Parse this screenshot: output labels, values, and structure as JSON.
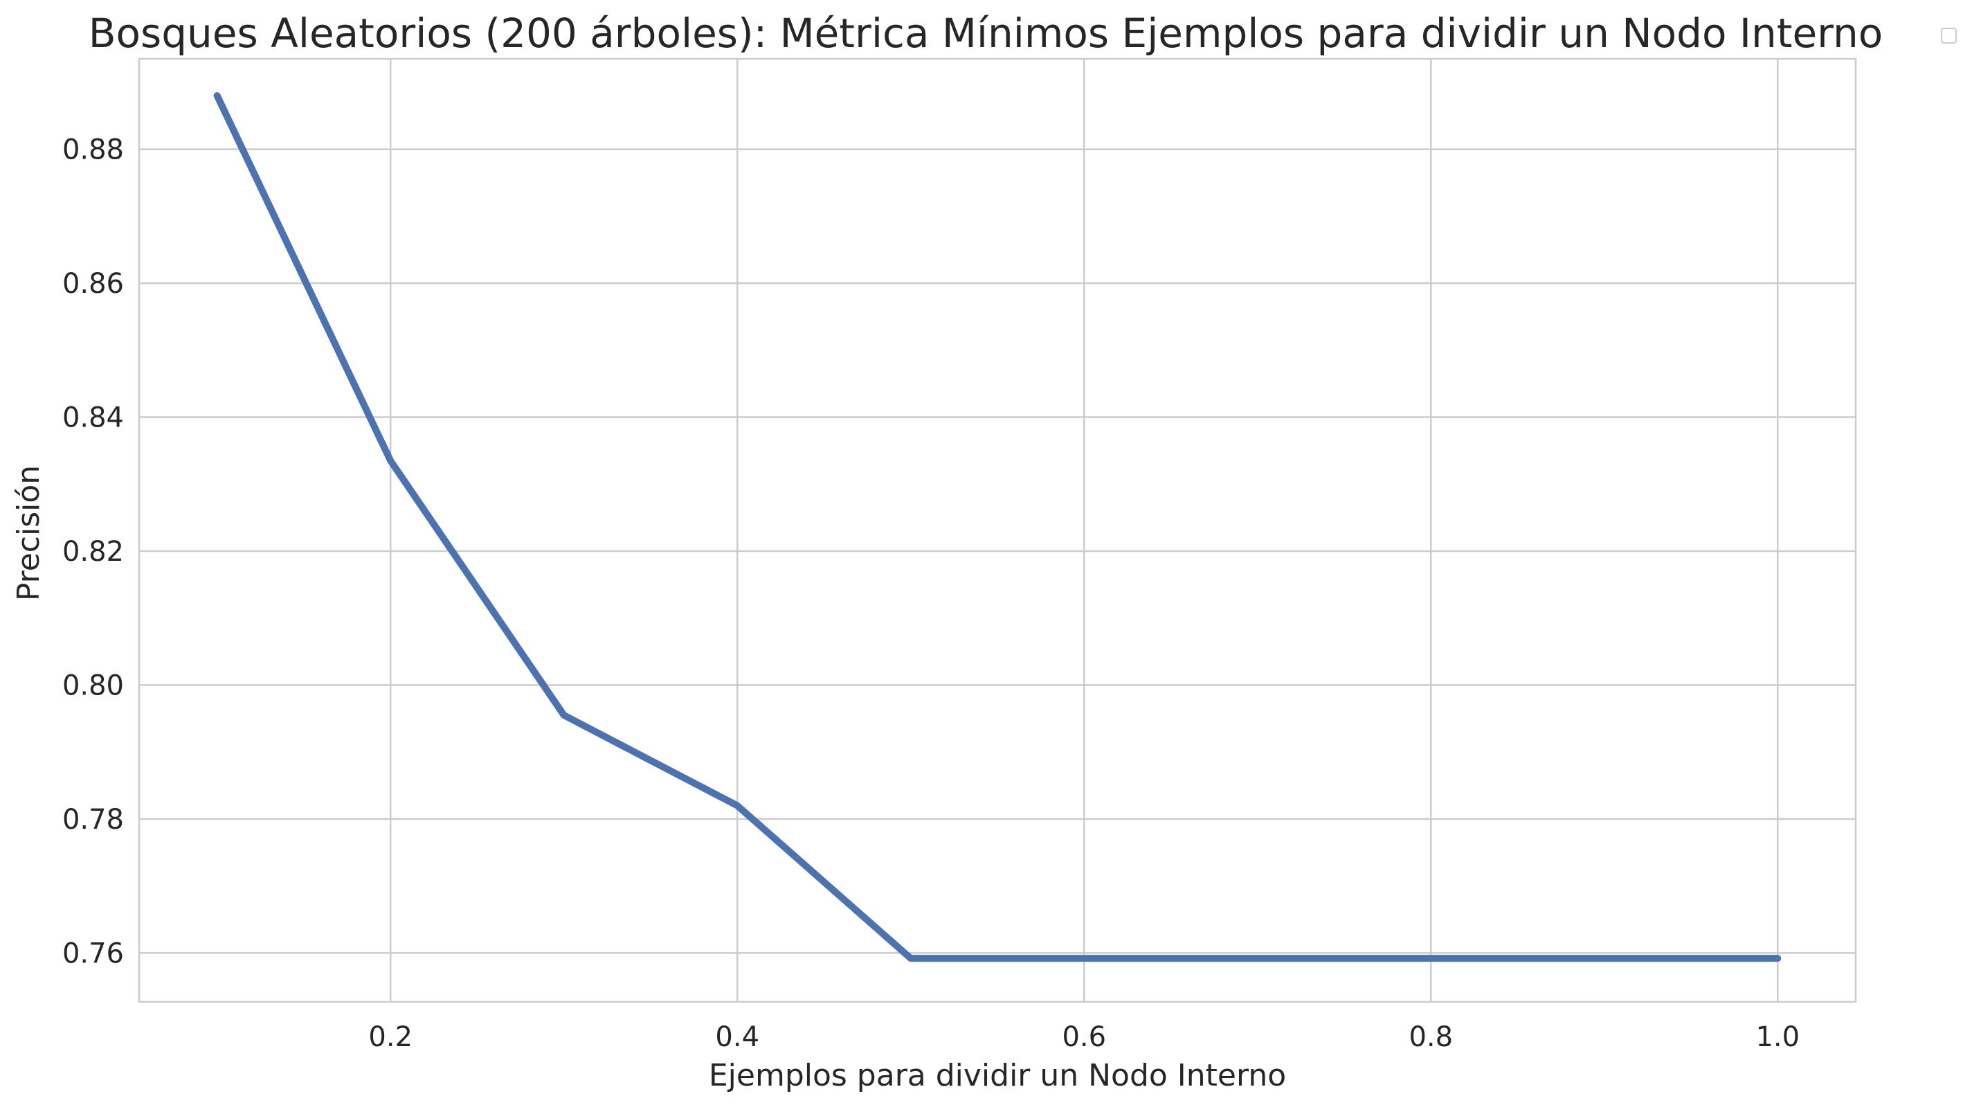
{
  "chart_data": {
    "type": "line",
    "title": "Bosques Aleatorios (200 árboles): Métrica Mínimos Ejemplos para dividir un Nodo Interno",
    "xlabel": "Ejemplos para dividir un Nodo Interno",
    "ylabel": "Precisión",
    "x": [
      0.1,
      0.2,
      0.3,
      0.4,
      0.5,
      0.6,
      0.7,
      0.8,
      0.9,
      1.0
    ],
    "series": [
      {
        "values": [
          0.888,
          0.8335,
          0.7955,
          0.782,
          0.7592,
          0.7592,
          0.7592,
          0.7592,
          0.7592,
          0.7592
        ],
        "color": "#4c72b0"
      }
    ],
    "xlim": [
      0.055,
      1.045
    ],
    "ylim": [
      0.7527,
      0.8935
    ],
    "xticks": [
      0.2,
      0.4,
      0.6,
      0.8,
      1.0
    ],
    "xtick_labels": [
      "0.2",
      "0.4",
      "0.6",
      "0.8",
      "1.0"
    ],
    "yticks": [
      0.76,
      0.78,
      0.8,
      0.82,
      0.84,
      0.86,
      0.88
    ],
    "ytick_labels": [
      "0.76",
      "0.78",
      "0.80",
      "0.82",
      "0.84",
      "0.86",
      "0.88"
    ],
    "grid": true,
    "legend": "top-right (empty)"
  }
}
